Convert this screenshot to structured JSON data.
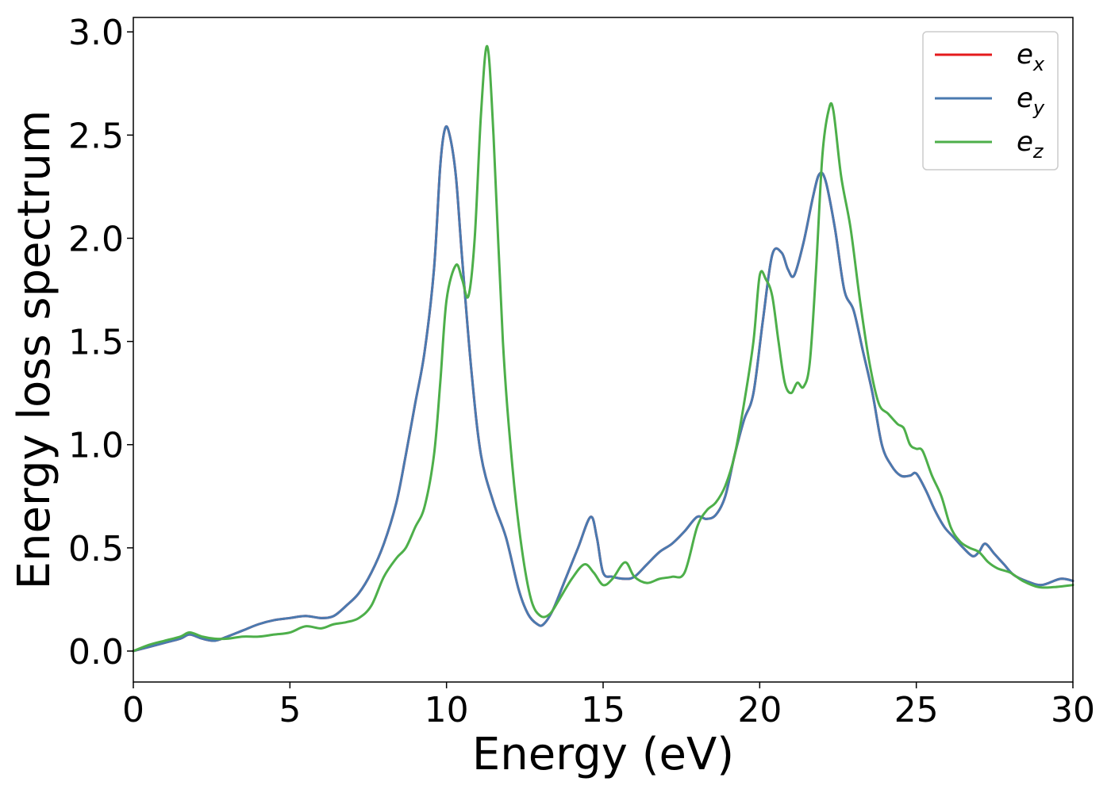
{
  "chart_data": {
    "type": "line",
    "title": "",
    "xlabel": "Energy (eV)",
    "ylabel": "Energy loss spectrum",
    "xlim": [
      0,
      30
    ],
    "ylim": [
      -0.15,
      3.07
    ],
    "xticks": [
      0,
      5,
      10,
      15,
      20,
      25,
      30
    ],
    "xtick_labels": [
      "0",
      "5",
      "10",
      "15",
      "20",
      "25",
      "30"
    ],
    "yticks": [
      0.0,
      0.5,
      1.0,
      1.5,
      2.0,
      2.5,
      3.0
    ],
    "ytick_labels": [
      "0.0",
      "0.5",
      "1.0",
      "1.5",
      "2.0",
      "2.5",
      "3.0"
    ],
    "grid": false,
    "legend_position": "top-right",
    "series": [
      {
        "name": "e",
        "subscript": "x",
        "color": "#e41a1c",
        "x": [
          0,
          0.5,
          1,
          1.5,
          1.8,
          2.2,
          2.6,
          3,
          3.5,
          4,
          4.5,
          5,
          5.5,
          6,
          6.4,
          6.8,
          7.2,
          7.6,
          8,
          8.4,
          8.7,
          9,
          9.3,
          9.6,
          9.8,
          9.95,
          10.1,
          10.3,
          10.5,
          10.8,
          11.1,
          11.5,
          11.9,
          12.3,
          12.6,
          12.9,
          13.1,
          13.4,
          13.8,
          14.2,
          14.6,
          14.8,
          15,
          15.3,
          15.7,
          16,
          16.4,
          16.8,
          17.2,
          17.6,
          18,
          18.3,
          18.6,
          18.9,
          19.2,
          19.5,
          19.8,
          20.1,
          20.4,
          20.7,
          20.9,
          21.1,
          21.4,
          21.7,
          21.9,
          22.1,
          22.4,
          22.7,
          23,
          23.3,
          23.6,
          23.9,
          24.2,
          24.5,
          24.8,
          25,
          25.3,
          25.6,
          25.9,
          26.2,
          26.5,
          26.8,
          27,
          27.2,
          27.5,
          27.8,
          28.1,
          28.5,
          29,
          29.6,
          30
        ],
        "y": [
          0,
          0.02,
          0.04,
          0.06,
          0.08,
          0.06,
          0.05,
          0.07,
          0.1,
          0.13,
          0.15,
          0.16,
          0.17,
          0.16,
          0.17,
          0.22,
          0.28,
          0.38,
          0.52,
          0.72,
          0.95,
          1.2,
          1.45,
          1.85,
          2.35,
          2.53,
          2.5,
          2.3,
          1.9,
          1.35,
          0.95,
          0.72,
          0.55,
          0.3,
          0.18,
          0.13,
          0.13,
          0.2,
          0.35,
          0.5,
          0.65,
          0.55,
          0.38,
          0.36,
          0.35,
          0.36,
          0.42,
          0.48,
          0.52,
          0.58,
          0.65,
          0.64,
          0.66,
          0.75,
          0.95,
          1.12,
          1.25,
          1.6,
          1.92,
          1.93,
          1.85,
          1.82,
          1.98,
          2.2,
          2.31,
          2.28,
          2.05,
          1.75,
          1.65,
          1.45,
          1.25,
          1.0,
          0.9,
          0.85,
          0.85,
          0.86,
          0.78,
          0.68,
          0.6,
          0.55,
          0.5,
          0.46,
          0.48,
          0.52,
          0.47,
          0.42,
          0.37,
          0.34,
          0.32,
          0.35,
          0.34
        ]
      },
      {
        "name": "e",
        "subscript": "y",
        "color": "#4a7ab0",
        "x": [
          0,
          0.5,
          1,
          1.5,
          1.8,
          2.2,
          2.6,
          3,
          3.5,
          4,
          4.5,
          5,
          5.5,
          6,
          6.4,
          6.8,
          7.2,
          7.6,
          8,
          8.4,
          8.7,
          9,
          9.3,
          9.6,
          9.8,
          9.95,
          10.1,
          10.3,
          10.5,
          10.8,
          11.1,
          11.5,
          11.9,
          12.3,
          12.6,
          12.9,
          13.1,
          13.4,
          13.8,
          14.2,
          14.6,
          14.8,
          15,
          15.3,
          15.7,
          16,
          16.4,
          16.8,
          17.2,
          17.6,
          18,
          18.3,
          18.6,
          18.9,
          19.2,
          19.5,
          19.8,
          20.1,
          20.4,
          20.7,
          20.9,
          21.1,
          21.4,
          21.7,
          21.9,
          22.1,
          22.4,
          22.7,
          23,
          23.3,
          23.6,
          23.9,
          24.2,
          24.5,
          24.8,
          25,
          25.3,
          25.6,
          25.9,
          26.2,
          26.5,
          26.8,
          27,
          27.2,
          27.5,
          27.8,
          28.1,
          28.5,
          29,
          29.6,
          30
        ],
        "y": [
          0,
          0.02,
          0.04,
          0.06,
          0.08,
          0.06,
          0.05,
          0.07,
          0.1,
          0.13,
          0.15,
          0.16,
          0.17,
          0.16,
          0.17,
          0.22,
          0.28,
          0.38,
          0.52,
          0.72,
          0.95,
          1.2,
          1.45,
          1.85,
          2.35,
          2.53,
          2.5,
          2.3,
          1.9,
          1.35,
          0.95,
          0.72,
          0.55,
          0.3,
          0.18,
          0.13,
          0.13,
          0.2,
          0.35,
          0.5,
          0.65,
          0.55,
          0.38,
          0.36,
          0.35,
          0.36,
          0.42,
          0.48,
          0.52,
          0.58,
          0.65,
          0.64,
          0.66,
          0.75,
          0.95,
          1.12,
          1.25,
          1.6,
          1.92,
          1.93,
          1.85,
          1.82,
          1.98,
          2.2,
          2.31,
          2.28,
          2.05,
          1.75,
          1.65,
          1.45,
          1.25,
          1.0,
          0.9,
          0.85,
          0.85,
          0.86,
          0.78,
          0.68,
          0.6,
          0.55,
          0.5,
          0.46,
          0.48,
          0.52,
          0.47,
          0.42,
          0.37,
          0.34,
          0.32,
          0.35,
          0.34
        ]
      },
      {
        "name": "e",
        "subscript": "z",
        "color": "#4daf4a",
        "x": [
          0,
          0.5,
          1,
          1.5,
          1.8,
          2.2,
          2.6,
          3,
          3.5,
          4,
          4.5,
          5,
          5.5,
          6,
          6.4,
          6.8,
          7.2,
          7.6,
          8,
          8.4,
          8.7,
          9,
          9.3,
          9.6,
          9.8,
          10,
          10.3,
          10.5,
          10.7,
          10.9,
          11.1,
          11.3,
          11.5,
          11.8,
          12.1,
          12.4,
          12.7,
          13,
          13.3,
          13.6,
          14,
          14.4,
          14.7,
          15,
          15.3,
          15.7,
          16,
          16.4,
          16.8,
          17.2,
          17.6,
          18,
          18.3,
          18.6,
          18.9,
          19.2,
          19.5,
          19.8,
          20,
          20.2,
          20.4,
          20.6,
          20.8,
          21,
          21.2,
          21.4,
          21.6,
          21.8,
          22,
          22.2,
          22.35,
          22.6,
          22.9,
          23.2,
          23.5,
          23.8,
          24.1,
          24.4,
          24.6,
          24.8,
          25,
          25.2,
          25.5,
          25.8,
          26.1,
          26.4,
          26.7,
          27,
          27.3,
          27.6,
          28,
          28.4,
          28.9,
          29.4,
          30
        ],
        "y": [
          0,
          0.03,
          0.05,
          0.07,
          0.09,
          0.07,
          0.06,
          0.06,
          0.07,
          0.07,
          0.08,
          0.09,
          0.12,
          0.11,
          0.13,
          0.14,
          0.16,
          0.22,
          0.36,
          0.45,
          0.5,
          0.6,
          0.7,
          0.95,
          1.3,
          1.7,
          1.87,
          1.8,
          1.72,
          2.0,
          2.6,
          2.93,
          2.5,
          1.5,
          0.9,
          0.5,
          0.25,
          0.17,
          0.18,
          0.25,
          0.35,
          0.42,
          0.38,
          0.32,
          0.35,
          0.43,
          0.36,
          0.33,
          0.35,
          0.36,
          0.38,
          0.6,
          0.68,
          0.72,
          0.8,
          0.95,
          1.2,
          1.5,
          1.82,
          1.8,
          1.72,
          1.5,
          1.3,
          1.25,
          1.3,
          1.28,
          1.4,
          1.85,
          2.4,
          2.62,
          2.62,
          2.3,
          2.05,
          1.7,
          1.4,
          1.2,
          1.15,
          1.1,
          1.08,
          1.0,
          0.98,
          0.97,
          0.85,
          0.75,
          0.6,
          0.53,
          0.5,
          0.48,
          0.43,
          0.4,
          0.38,
          0.34,
          0.31,
          0.31,
          0.32
        ]
      }
    ]
  }
}
